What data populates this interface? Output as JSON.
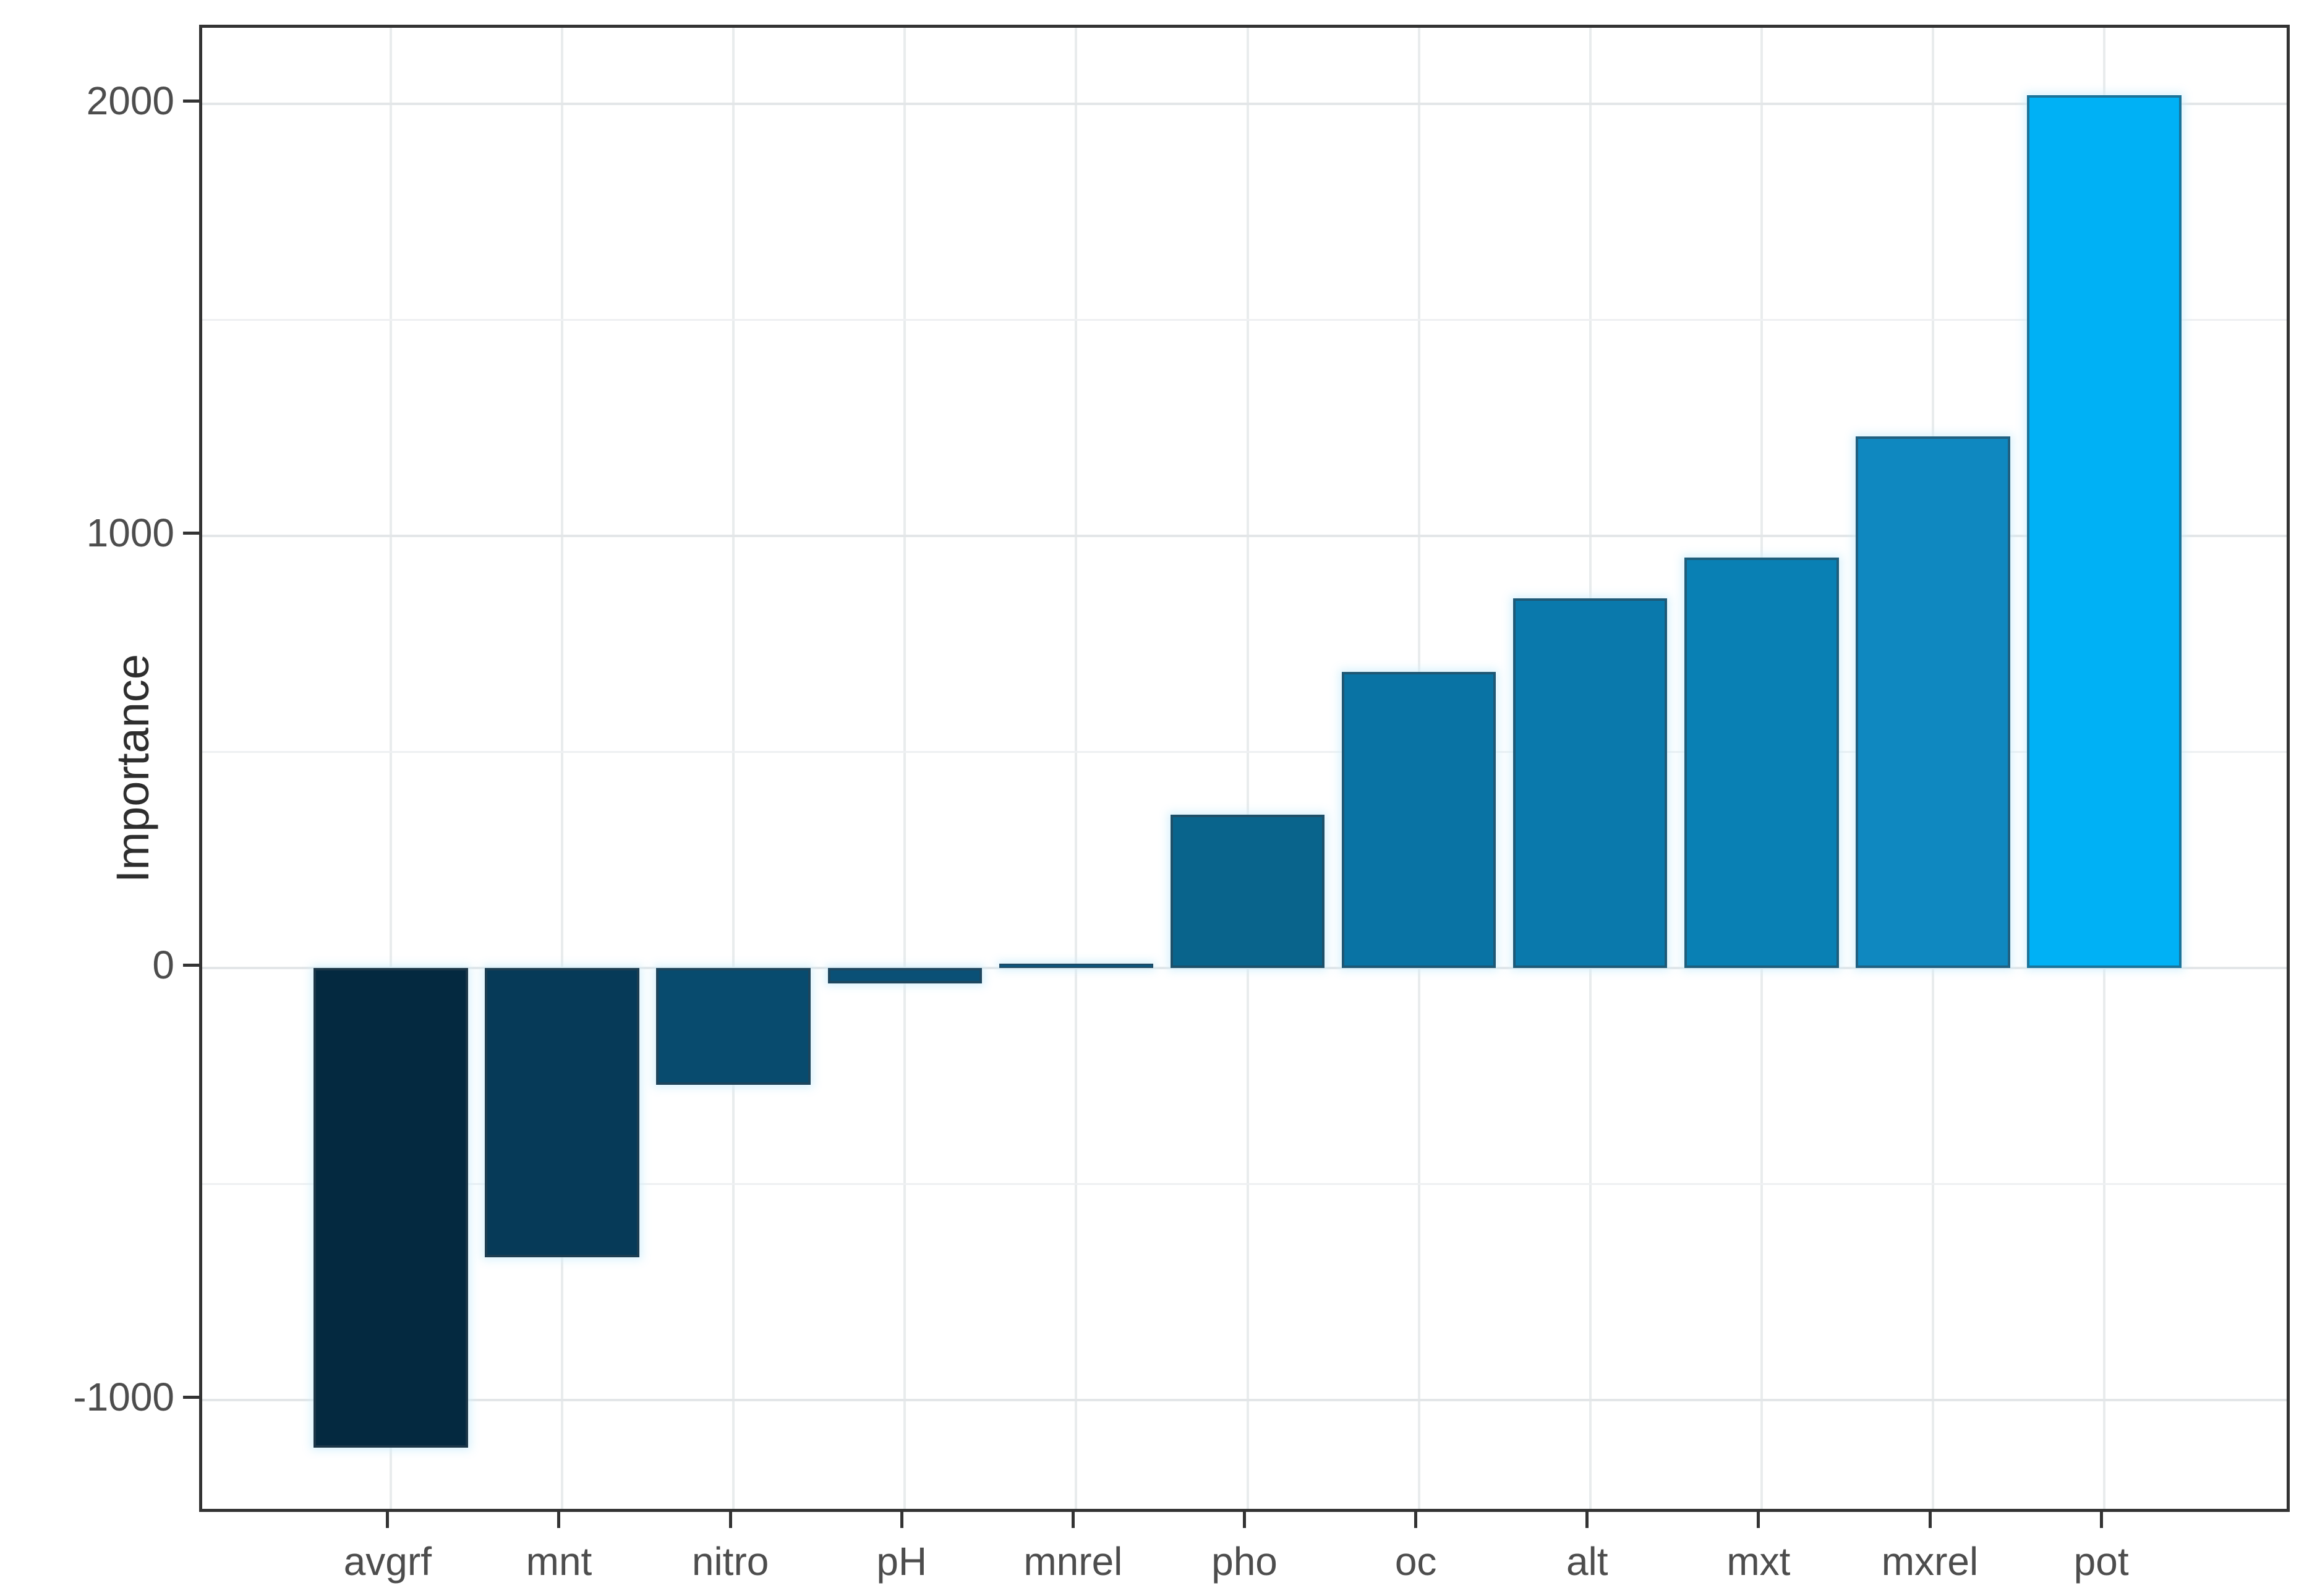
{
  "chart_data": {
    "type": "bar",
    "title": "",
    "xlabel": "",
    "ylabel": "Importance",
    "categories": [
      "avgrf",
      "mnt",
      "nitro",
      "pH",
      "mnrel",
      "pho",
      "oc",
      "alt",
      "mxt",
      "mxrel",
      "pot"
    ],
    "values": [
      -1110,
      -670,
      -270,
      -35,
      10,
      355,
      685,
      855,
      950,
      1230,
      2020
    ],
    "bar_colors": [
      "#042940",
      "#063a58",
      "#084b6e",
      "#0a5076",
      "#0d567d",
      "#09648c",
      "#0973a4",
      "#0a79ac",
      "#0980b4",
      "#0f88c0",
      "#00b1f5"
    ],
    "y_ticks": [
      2000,
      1000,
      0,
      -1000
    ],
    "y_tick_labels": [
      "2000",
      "1000",
      "0",
      "-1000"
    ],
    "y_minor_ticks": [
      1500,
      500,
      -500
    ],
    "ylim": [
      -1266,
      2176
    ],
    "bar_width_frac": 0.9,
    "x_edge_expansion": 0.6,
    "grid": "on",
    "legend": "none",
    "panel_background": "#ffffff",
    "major_grid_color": "#e3e6e8",
    "minor_grid_color": "#eef0f2",
    "vertical_grid_color": "#e9eced",
    "axis_text_color": "#4d4d4d",
    "axis_title_color": "#2e2e2e",
    "panel_border_color": "#333333",
    "tick_color": "#333333",
    "bar_edge_color": "rgba(47, 64, 76, 0.55)"
  }
}
